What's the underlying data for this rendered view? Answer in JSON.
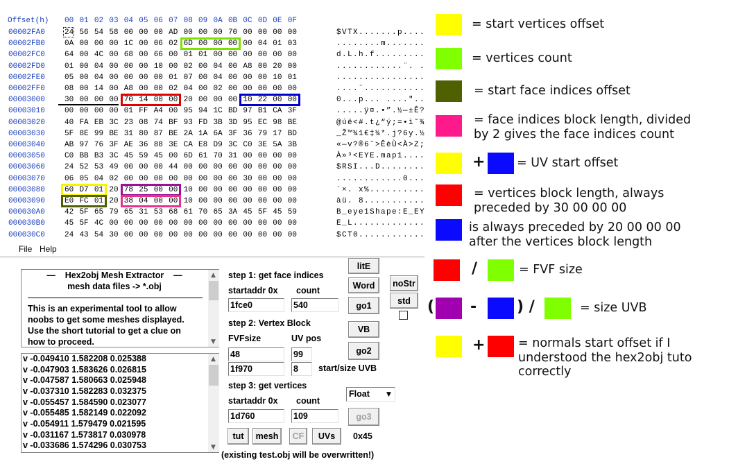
{
  "hex_view": {
    "offset_header": "Offset(h)",
    "column_headers": [
      "00",
      "01",
      "02",
      "03",
      "04",
      "05",
      "06",
      "07",
      "08",
      "09",
      "0A",
      "0B",
      "0C",
      "0D",
      "0E",
      "0F"
    ],
    "rows": [
      {
        "offset": "00002FA0",
        "bytes": [
          "24",
          "56",
          "54",
          "58",
          "00",
          "00",
          "00",
          "AD",
          "00",
          "00",
          "00",
          "70",
          "00",
          "00",
          "00",
          "00"
        ],
        "ascii": "$VTX.......p...."
      },
      {
        "offset": "00002FB0",
        "bytes": [
          "0A",
          "00",
          "00",
          "00",
          "1C",
          "00",
          "06",
          "02",
          "6D",
          "00",
          "00",
          "00",
          "00",
          "04",
          "01",
          "03"
        ],
        "ascii": "........m......."
      },
      {
        "offset": "00002FC0",
        "bytes": [
          "64",
          "00",
          "4C",
          "00",
          "68",
          "00",
          "66",
          "00",
          "01",
          "01",
          "00",
          "00",
          "00",
          "00",
          "00",
          "00"
        ],
        "ascii": "d.L.h.f........."
      },
      {
        "offset": "00002FD0",
        "bytes": [
          "01",
          "00",
          "04",
          "00",
          "00",
          "00",
          "10",
          "00",
          "02",
          "00",
          "04",
          "00",
          "A8",
          "00",
          "20",
          "00"
        ],
        "ascii": "............¨. ."
      },
      {
        "offset": "00002FE0",
        "bytes": [
          "05",
          "00",
          "04",
          "00",
          "00",
          "00",
          "00",
          "01",
          "07",
          "00",
          "04",
          "00",
          "00",
          "00",
          "10",
          "01"
        ],
        "ascii": "................"
      },
      {
        "offset": "00002FF0",
        "bytes": [
          "08",
          "00",
          "14",
          "00",
          "A8",
          "00",
          "00",
          "02",
          "04",
          "00",
          "02",
          "00",
          "00",
          "00",
          "00",
          "00"
        ],
        "ascii": "....¨..........."
      },
      {
        "offset": "00003000",
        "bytes": [
          "30",
          "00",
          "00",
          "00",
          "70",
          "14",
          "00",
          "00",
          "20",
          "00",
          "00",
          "00",
          "10",
          "22",
          "00",
          "00"
        ],
        "ascii": "0...p... ....\".."
      },
      {
        "offset": "00003010",
        "bytes": [
          "00",
          "00",
          "00",
          "00",
          "01",
          "FF",
          "A4",
          "00",
          "95",
          "94",
          "1C",
          "BD",
          "97",
          "B1",
          "CA",
          "3F"
        ],
        "ascii": ".....ÿ¤.•”.½—±Ê?"
      },
      {
        "offset": "00003020",
        "bytes": [
          "40",
          "FA",
          "EB",
          "3C",
          "23",
          "08",
          "74",
          "BF",
          "93",
          "FD",
          "3B",
          "3D",
          "95",
          "EC",
          "98",
          "BE"
        ],
        "ascii": "@úë<#.t¿“ý;=•ì˜¾"
      },
      {
        "offset": "00003030",
        "bytes": [
          "5F",
          "8E",
          "99",
          "BE",
          "31",
          "80",
          "87",
          "BE",
          "2A",
          "1A",
          "6A",
          "3F",
          "36",
          "79",
          "17",
          "BD"
        ],
        "ascii": "_Ž™¾1€‡¾*.j?6y.½"
      },
      {
        "offset": "00003040",
        "bytes": [
          "AB",
          "97",
          "76",
          "3F",
          "AE",
          "36",
          "88",
          "3E",
          "CA",
          "E8",
          "D9",
          "3C",
          "C0",
          "3E",
          "5A",
          "3B"
        ],
        "ascii": "«—v?®6ˆ>ÊèÙ<À>Z;"
      },
      {
        "offset": "00003050",
        "bytes": [
          "C0",
          "BB",
          "B3",
          "3C",
          "45",
          "59",
          "45",
          "00",
          "6D",
          "61",
          "70",
          "31",
          "00",
          "00",
          "00",
          "00"
        ],
        "ascii": "À»³<EYE.map1...."
      },
      {
        "offset": "00003060",
        "bytes": [
          "24",
          "52",
          "53",
          "49",
          "00",
          "00",
          "00",
          "44",
          "00",
          "00",
          "00",
          "00",
          "00",
          "00",
          "00",
          "00"
        ],
        "ascii": "$RSI...D........"
      },
      {
        "offset": "00003070",
        "bytes": [
          "06",
          "05",
          "04",
          "02",
          "00",
          "00",
          "00",
          "00",
          "00",
          "00",
          "00",
          "00",
          "30",
          "00",
          "00",
          "00"
        ],
        "ascii": "............0..."
      },
      {
        "offset": "00003080",
        "bytes": [
          "60",
          "D7",
          "01",
          "20",
          "78",
          "25",
          "00",
          "00",
          "10",
          "00",
          "00",
          "00",
          "00",
          "00",
          "00",
          "00"
        ],
        "ascii": "`×. x%.........."
      },
      {
        "offset": "00003090",
        "bytes": [
          "E0",
          "FC",
          "01",
          "20",
          "38",
          "04",
          "00",
          "00",
          "10",
          "00",
          "00",
          "00",
          "00",
          "00",
          "00",
          "00"
        ],
        "ascii": "àü. 8..........."
      },
      {
        "offset": "000030A0",
        "bytes": [
          "42",
          "5F",
          "65",
          "79",
          "65",
          "31",
          "53",
          "68",
          "61",
          "70",
          "65",
          "3A",
          "45",
          "5F",
          "45",
          "59"
        ],
        "ascii": "B_eye1Shape:E_EY"
      },
      {
        "offset": "000030B0",
        "bytes": [
          "45",
          "5F",
          "4C",
          "00",
          "00",
          "00",
          "00",
          "00",
          "00",
          "00",
          "00",
          "00",
          "00",
          "00",
          "00",
          "00"
        ],
        "ascii": "E_L............."
      },
      {
        "offset": "000030C0",
        "bytes": [
          "24",
          "43",
          "54",
          "30",
          "00",
          "00",
          "00",
          "00",
          "00",
          "00",
          "00",
          "00",
          "00",
          "00",
          "00",
          "00"
        ],
        "ascii": "$CT0............"
      }
    ]
  },
  "legend": {
    "items": [
      {
        "lines": [
          "= start vertices offset"
        ]
      },
      {
        "lines": [
          "= vertices count"
        ]
      },
      {
        "lines": [
          "= start face indices offset"
        ]
      },
      {
        "lines": [
          "= face indices block length, divided",
          "by 2 gives the face indices count"
        ]
      },
      {
        "operators": [
          "+"
        ],
        "lines": [
          "= UV start offset"
        ]
      },
      {
        "lines": [
          "= vertices block length, always",
          "preceded by 30 00 00 00"
        ]
      },
      {
        "lines": [
          "is always preceded by 20 00 00 00",
          "after the vertices block length"
        ]
      },
      {
        "operators": [
          "/"
        ],
        "lines": [
          "= FVF size"
        ]
      },
      {
        "operators": [
          "(",
          "-",
          ") /"
        ],
        "lines": [
          "= size UVB"
        ]
      },
      {
        "operators": [
          "+"
        ],
        "lines": [
          "= normals start offset if I",
          "understood the hex2obj tuto",
          "correctly"
        ]
      }
    ]
  },
  "app": {
    "menu": [
      "File",
      "Help"
    ],
    "info_box": {
      "header_lines": [
        "—    Hex2obj Mesh Extractor    —",
        "mesh data files -> *.obj"
      ],
      "body_lines": [
        "This is an experimental tool to allow",
        "noobs to get some meshes displayed.",
        "Use the short tutorial to get a clue on",
        "how to proceed."
      ]
    },
    "output_lines": [
      "v -0.049410 1.582208 0.025388",
      "v -0.047903 1.583626 0.026815",
      "v -0.047587 1.580663 0.025948",
      "v -0.037310 1.582283 0.032375",
      "v -0.055457 1.584590 0.023077",
      "v -0.055485 1.582149 0.022092",
      "v -0.054911 1.579479 0.021595",
      "v -0.031167 1.573817 0.030978",
      "v -0.033686 1.574296 0.030753"
    ],
    "steps": [
      {
        "title": "step 1: get face indices",
        "labels": [
          "startaddr 0x",
          "count"
        ],
        "fields": [
          "1fce0",
          "540"
        ]
      },
      {
        "title": "step 2: Vertex Block",
        "labels": [
          "FVFsize",
          "UV pos"
        ],
        "fields": [
          "48",
          "99",
          "1f970",
          "8"
        ],
        "note": "start/size UVB"
      },
      {
        "title": "step 3: get vertices",
        "labels": [
          "startaddr 0x",
          "count"
        ],
        "fields": [
          "1d760",
          "109"
        ]
      }
    ],
    "buttons": [
      {
        "label": "litE"
      },
      {
        "label": "Word"
      },
      {
        "label": "noStr"
      },
      {
        "label": "std"
      },
      {
        "label": "go1"
      },
      {
        "label": "VB"
      },
      {
        "label": "go2"
      },
      {
        "label": "go3",
        "disabled": true
      },
      {
        "label": "tut"
      },
      {
        "label": "mesh"
      },
      {
        "label": "CF",
        "disabled": true
      },
      {
        "label": "UVs"
      }
    ],
    "combo": "Float",
    "hex_value": "0x45",
    "note": "(existing test.obj will be overwritten!)"
  }
}
